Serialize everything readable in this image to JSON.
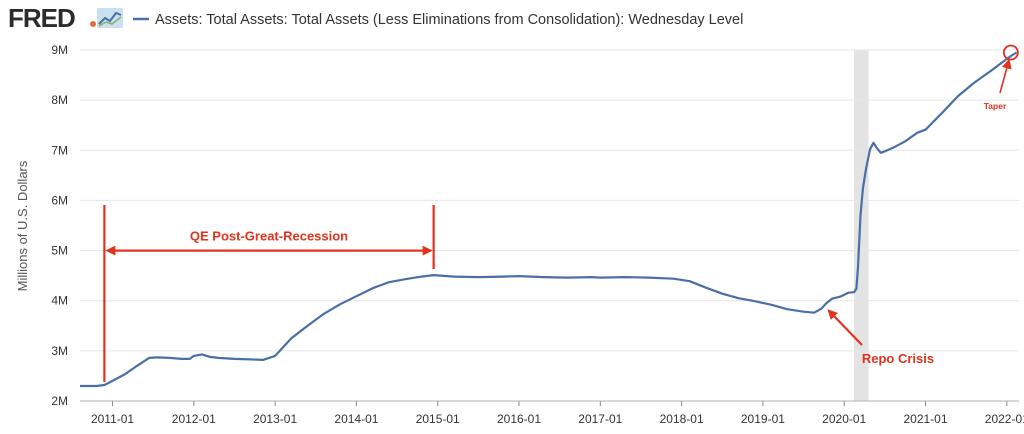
{
  "header": {
    "logo_text": "FRED",
    "legend_label": "Assets: Total Assets: Total Assets (Less Eliminations from Consolidation): Wednesday Level"
  },
  "colors": {
    "series": "#4a6fa5",
    "annotation": "#e0321e",
    "grid": "#e6e6e6",
    "recession": "#e3e3e3",
    "logo_graph_bg": "#c9e0f2",
    "logo_dot": "#e26b3a"
  },
  "icons": {
    "logo_graph": "fred-graph-icon"
  },
  "chart_data": {
    "type": "line",
    "title": "",
    "xlabel": "",
    "ylabel": "Millions of U.S. Dollars",
    "yticks": [
      2000000,
      3000000,
      4000000,
      5000000,
      6000000,
      7000000,
      8000000,
      9000000
    ],
    "ytick_labels": [
      "2M",
      "3M",
      "4M",
      "5M",
      "6M",
      "7M",
      "8M",
      "9M"
    ],
    "ylim": [
      2000000,
      9000000
    ],
    "xlim": [
      2010.6,
      2022.15
    ],
    "xticks": [
      2011,
      2012,
      2013,
      2014,
      2015,
      2016,
      2017,
      2018,
      2019,
      2020,
      2021,
      2022
    ],
    "xtick_labels": [
      "2011-01",
      "2012-01",
      "2013-01",
      "2014-01",
      "2015-01",
      "2016-01",
      "2017-01",
      "2018-01",
      "2019-01",
      "2020-01",
      "2021-01",
      "2022-01"
    ],
    "grid": true,
    "recession_shading": [
      2020.12,
      2020.3
    ],
    "series": [
      {
        "name": "Assets: Total Assets: Total Assets (Less Eliminations from Consolidation): Wednesday Level",
        "x": [
          2010.6,
          2010.8,
          2010.9,
          2011.0,
          2011.15,
          2011.3,
          2011.45,
          2011.55,
          2011.7,
          2011.85,
          2011.95,
          2012.0,
          2012.1,
          2012.2,
          2012.3,
          2012.5,
          2012.7,
          2012.85,
          2013.0,
          2013.2,
          2013.4,
          2013.6,
          2013.8,
          2014.0,
          2014.2,
          2014.4,
          2014.6,
          2014.8,
          2014.95,
          2015.2,
          2015.5,
          2015.8,
          2016.0,
          2016.3,
          2016.6,
          2016.9,
          2017.0,
          2017.3,
          2017.6,
          2017.9,
          2018.1,
          2018.3,
          2018.5,
          2018.7,
          2018.9,
          2019.1,
          2019.3,
          2019.5,
          2019.63,
          2019.72,
          2019.78,
          2019.85,
          2019.95,
          2020.05,
          2020.12,
          2020.15,
          2020.17,
          2020.2,
          2020.23,
          2020.27,
          2020.32,
          2020.36,
          2020.4,
          2020.45,
          2020.5,
          2020.6,
          2020.75,
          2020.9,
          2021.0,
          2021.2,
          2021.4,
          2021.6,
          2021.8,
          2021.95,
          2022.05,
          2022.12
        ],
        "values": [
          2300000,
          2300000,
          2320000,
          2400000,
          2530000,
          2700000,
          2860000,
          2870000,
          2860000,
          2840000,
          2840000,
          2900000,
          2930000,
          2880000,
          2860000,
          2840000,
          2830000,
          2820000,
          2900000,
          3250000,
          3500000,
          3740000,
          3930000,
          4090000,
          4250000,
          4370000,
          4430000,
          4480000,
          4510000,
          4480000,
          4470000,
          4480000,
          4490000,
          4470000,
          4460000,
          4470000,
          4460000,
          4470000,
          4460000,
          4440000,
          4390000,
          4260000,
          4140000,
          4050000,
          3990000,
          3920000,
          3830000,
          3780000,
          3760000,
          3840000,
          3950000,
          4040000,
          4080000,
          4160000,
          4170000,
          4240000,
          4670000,
          5700000,
          6240000,
          6650000,
          7030000,
          7150000,
          7050000,
          6950000,
          6980000,
          7050000,
          7180000,
          7350000,
          7410000,
          7740000,
          8080000,
          8350000,
          8580000,
          8760000,
          8880000,
          8950000
        ]
      }
    ],
    "annotations": [
      {
        "text": "QE Post-Great-Recession",
        "type": "span-arrow",
        "x_start": 2010.9,
        "x_end": 2014.95,
        "y": 5000000
      },
      {
        "text": "Repo Crisis",
        "type": "arrow",
        "target_x": 2019.75,
        "target_y": 3880000
      },
      {
        "text": "Taper",
        "type": "circle-arrow",
        "target_x": 2022.05,
        "target_y": 8950000
      }
    ]
  }
}
